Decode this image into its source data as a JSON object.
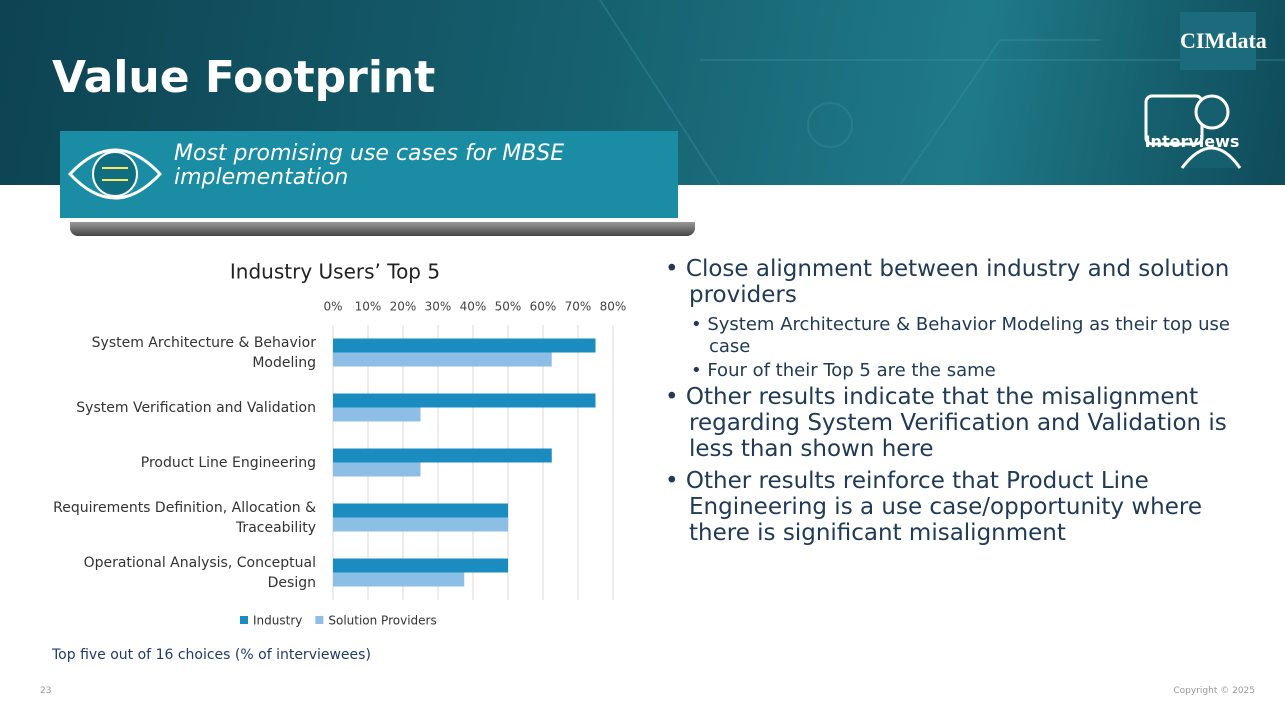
{
  "header": {
    "title": "Value Footprint",
    "subtitle": "Most promising use cases for MBSE implementation",
    "logo": "CIMdata",
    "badge": "Interviews"
  },
  "chart_data": {
    "type": "bar",
    "orientation": "horizontal",
    "title": "Industry Users’ Top 5",
    "categories": [
      "System Architecture & Behavior Modeling",
      "System Verification and Validation",
      "Product Line Engineering",
      "Requirements Definition, Allocation & Traceability",
      "Operational Analysis, Conceptual Design"
    ],
    "series": [
      {
        "name": "Industry",
        "color": "#1b8cc0",
        "values": [
          75,
          75,
          62.5,
          50,
          50
        ]
      },
      {
        "name": "Solution Providers",
        "color": "#8dbfe6",
        "values": [
          62.5,
          25,
          25,
          50,
          37.5
        ]
      }
    ],
    "xlim": [
      0,
      80
    ],
    "xticks": [
      {
        "value": 0,
        "label": "0%"
      },
      {
        "value": 10,
        "label": "10%"
      },
      {
        "value": 20,
        "label": "20%"
      },
      {
        "value": 30,
        "label": "30%"
      },
      {
        "value": 40,
        "label": "40%"
      },
      {
        "value": 50,
        "label": "50%"
      },
      {
        "value": 60,
        "label": "60%"
      },
      {
        "value": 70,
        "label": "70%"
      },
      {
        "value": 80,
        "label": "80%"
      }
    ],
    "grid": true,
    "legend": "bottom"
  },
  "note": "Top five out of 16 choices (% of interviewees)",
  "bullets": [
    {
      "text": "Close alignment between industry and solution providers",
      "sub": [
        "System Architecture & Behavior Modeling as their top use case",
        "Four of their Top 5 are the same"
      ]
    },
    {
      "text": "Other results indicate that the misalignment regarding System Verification and Validation is less than shown here"
    },
    {
      "text": "Other results reinforce that Product Line Engineering is a use case/opportunity where there is significant misalignment"
    }
  ],
  "footer": {
    "page": "23",
    "copyright": "Copyright © 2025"
  }
}
